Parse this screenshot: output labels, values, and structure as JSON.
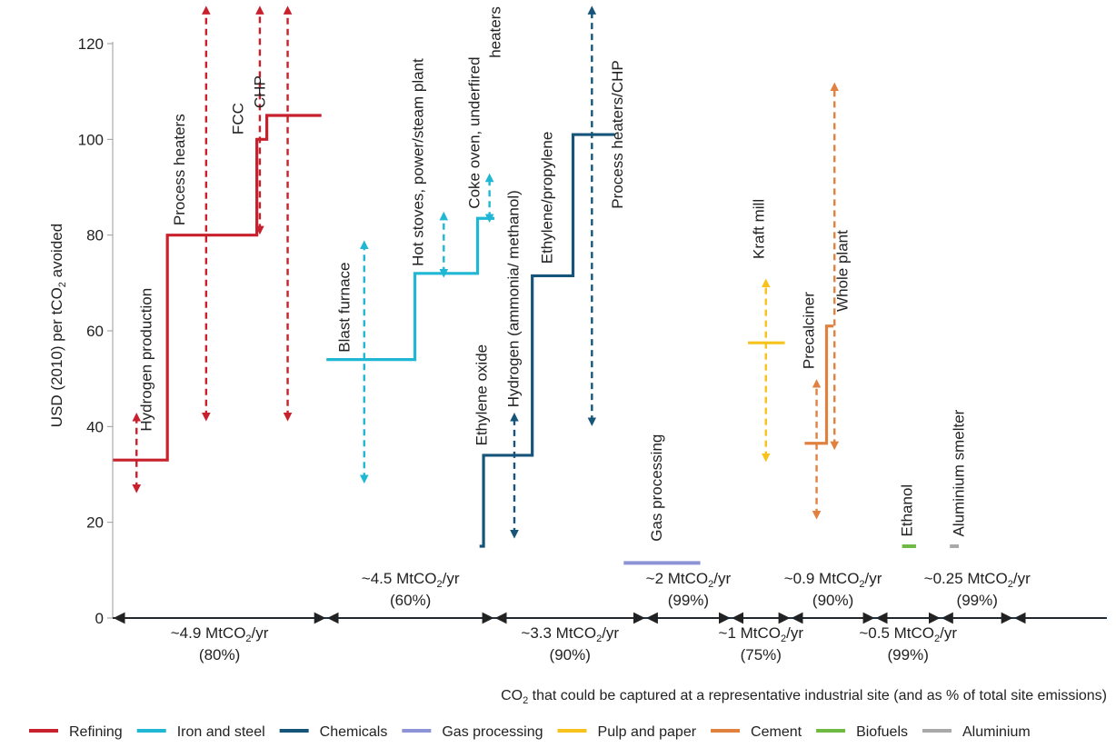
{
  "chart_data": {
    "type": "line",
    "ylabel": {
      "pre": "USD (2010) per tCO",
      "sub": "2",
      "post": " avoided"
    },
    "xlabel": {
      "pre": "CO",
      "sub": "2",
      "post": " that could be captured at a representative industrial site (and as % of total site emissions)"
    },
    "ylim": [
      0,
      125
    ],
    "xlim": [
      0,
      100
    ],
    "yticks": [
      0,
      20,
      40,
      60,
      80,
      100,
      120
    ],
    "grid": false,
    "legend_position": "bottom",
    "colors": {
      "Refining": "#c8202d",
      "Iron and steel": "#1fb7d3",
      "Chemicals": "#17547a",
      "Gas processing": "#8c93d6",
      "Pulp and paper": "#f7c21b",
      "Cement": "#e0813f",
      "Biofuels": "#6fba42",
      "Aluminium": "#a9a9a9"
    },
    "legend": [
      "Refining",
      "Iron and steel",
      "Chemicals",
      "Gas processing",
      "Pulp and paper",
      "Cement",
      "Biofuels",
      "Aluminium"
    ],
    "series": [
      {
        "name": "Refining",
        "steps": [
          {
            "x0": 0,
            "x1": 5.5,
            "y": 33
          },
          {
            "x0": 5.5,
            "x1": 14.5,
            "y": 80
          },
          {
            "x0": 14.5,
            "x1": 15.5,
            "y": 100
          },
          {
            "x0": 15.5,
            "x1": 21,
            "y": 105
          }
        ],
        "ranges": [
          {
            "x": 2.4,
            "low": 27,
            "high": 42
          },
          {
            "x": 9.4,
            "low": 42,
            "high": 127
          },
          {
            "x": 14.8,
            "low": 81,
            "high": 127
          },
          {
            "x": 17.6,
            "low": 42,
            "high": 127
          }
        ]
      },
      {
        "name": "Iron and steel",
        "steps": [
          {
            "x0": 21.5,
            "x1": 30.4,
            "y": 54
          },
          {
            "x0": 30.4,
            "x1": 36.7,
            "y": 72
          },
          {
            "x0": 36.7,
            "x1": 38.4,
            "y": 83.5
          }
        ],
        "ranges": [
          {
            "x": 25.3,
            "low": 29,
            "high": 78
          },
          {
            "x": 33.3,
            "low": 72,
            "high": 84
          },
          {
            "x": 37.9,
            "low": 83.5,
            "high": 92
          }
        ]
      },
      {
        "name": "Chemicals",
        "steps": [
          {
            "x0": 36.9,
            "x1": 37.3,
            "y": 15
          },
          {
            "x0": 37.3,
            "x1": 42.2,
            "y": 34
          },
          {
            "x0": 42.2,
            "x1": 46.3,
            "y": 71.5
          },
          {
            "x0": 46.3,
            "x1": 50.5,
            "y": 101
          }
        ],
        "ranges": [
          {
            "x": 40.4,
            "low": 17.5,
            "high": 42
          },
          {
            "x": 48.2,
            "low": 41,
            "high": 127
          }
        ]
      },
      {
        "name": "Gas processing",
        "steps": [
          {
            "x0": 51.4,
            "x1": 59.1,
            "y": 11.5
          }
        ],
        "ranges": []
      },
      {
        "name": "Pulp and paper",
        "steps": [
          {
            "x0": 63.9,
            "x1": 67.6,
            "y": 57.5
          }
        ],
        "ranges": [
          {
            "x": 65.7,
            "low": 33.5,
            "high": 70
          }
        ]
      },
      {
        "name": "Cement",
        "steps": [
          {
            "x0": 69.6,
            "x1": 71.8,
            "y": 36.5
          },
          {
            "x0": 71.8,
            "x1": 72.5,
            "y": 61
          }
        ],
        "ranges": [
          {
            "x": 70.8,
            "low": 21.5,
            "high": 49
          },
          {
            "x": 72.6,
            "low": 36,
            "high": 111
          }
        ]
      },
      {
        "name": "Biofuels",
        "steps": [
          {
            "x0": 79.4,
            "x1": 80.8,
            "y": 15
          }
        ],
        "ranges": []
      },
      {
        "name": "Aluminium",
        "steps": [
          {
            "x0": 84.2,
            "x1": 85.1,
            "y": 15
          }
        ],
        "ranges": []
      }
    ],
    "annotations": [
      {
        "text": "Hydrogen production",
        "x": 3.9,
        "y": 39,
        "color": "Refining"
      },
      {
        "text": "Process heaters",
        "x": 7.2,
        "y": 82,
        "color": "Refining"
      },
      {
        "text": "FCC",
        "x": 13.1,
        "y": 101,
        "color": "Refining"
      },
      {
        "text": "CHP",
        "x": 15.3,
        "y": 106.5,
        "color": "Refining"
      },
      {
        "text": "Blast furnace",
        "x": 23.8,
        "y": 55.5,
        "color": "Iron and steel"
      },
      {
        "text": "Hot stoves, power/steam plant",
        "x": 31.2,
        "y": 73.5,
        "color": "Iron and steel"
      },
      {
        "text": "Coke oven, underfired",
        "x": 36.9,
        "y": 85.5,
        "color": "Iron and steel"
      },
      {
        "text": "heaters",
        "x": 39,
        "y": 117,
        "color": "Iron and steel"
      },
      {
        "text": "Ethylene oxide",
        "x": 37.6,
        "y": 36,
        "color": "Chemicals"
      },
      {
        "text": "Hydrogen (ammonia/ methanol)",
        "x": 40.8,
        "y": 44,
        "color": "Chemicals"
      },
      {
        "text": "Ethylene/propylene",
        "x": 44.2,
        "y": 74,
        "color": "Chemicals"
      },
      {
        "text": "Process heaters/CHP",
        "x": 51.3,
        "y": 85.5,
        "color": "Chemicals"
      },
      {
        "text": "Gas processing",
        "x": 55.2,
        "y": 16,
        "color": "Gas processing"
      },
      {
        "text": "Kraft mill",
        "x": 65.5,
        "y": 75,
        "color": "Pulp and paper"
      },
      {
        "text": "Precalciner",
        "x": 70.5,
        "y": 52,
        "color": "Cement"
      },
      {
        "text": "Whole plant",
        "x": 73.9,
        "y": 64,
        "color": "Cement"
      },
      {
        "text": "Ethanol",
        "x": 80.4,
        "y": 17,
        "color": "Biofuels"
      },
      {
        "text": "Aluminium smelter",
        "x": 85.6,
        "y": 17,
        "color": "Aluminium"
      }
    ],
    "x_segments": [
      {
        "start": 0,
        "end": 21.5,
        "amount": "~4.9",
        "share": "(80%)",
        "position": "below"
      },
      {
        "start": 21.5,
        "end": 38.4,
        "amount": "~4.5",
        "share": "(60%)",
        "position": "above"
      },
      {
        "start": 38.4,
        "end": 53.6,
        "amount": "~3.3",
        "share": "(90%)",
        "position": "below"
      },
      {
        "start": 53.6,
        "end": 62.2,
        "amount": "~2",
        "share": "(99%)",
        "position": "above"
      },
      {
        "start": 62.2,
        "end": 68.2,
        "amount": "~1",
        "share": "(75%)",
        "position": "below"
      },
      {
        "start": 68.2,
        "end": 76.7,
        "amount": "~0.9",
        "share": "(90%)",
        "position": "above"
      },
      {
        "start": 76.7,
        "end": 83.3,
        "amount": "~0.5",
        "share": "(99%)",
        "position": "below"
      },
      {
        "start": 83.3,
        "end": 90.6,
        "amount": "~0.25",
        "share": "(99%)",
        "position": "above"
      },
      {
        "start": 90.6,
        "end": 100,
        "amount": "",
        "share": "",
        "position": "none"
      }
    ],
    "unit": {
      "pre": " MtCO",
      "sub": "2",
      "post": "/yr"
    }
  }
}
